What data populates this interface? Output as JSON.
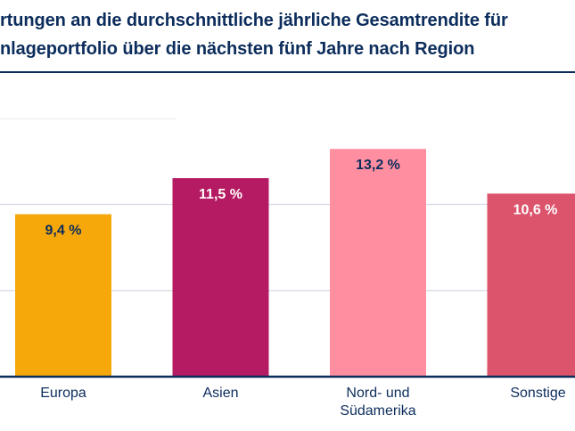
{
  "header": {
    "title_lines": [
      "rtungen an die durchschnittliche jährliche Gesamtrendite für",
      "nlageportfolio über die nächsten fünf Jahre nach Region"
    ]
  },
  "colors": {
    "text": "#0c2d5c",
    "gridline": "#d3dae6",
    "axis": "#0c2d5c"
  },
  "chart_data": {
    "type": "bar",
    "title": "…rtungen an die durchschnittliche jährliche Gesamtrendite für …nlageportfolio über die nächsten fünf Jahre nach Region",
    "categories": [
      "Europa",
      "Asien",
      "Nord- und Südamerika",
      "Sonstige"
    ],
    "category_label_lines": [
      [
        "Europa"
      ],
      [
        "Asien"
      ],
      [
        "Nord- und",
        "Südamerika"
      ],
      [
        "Sonstige"
      ]
    ],
    "values": [
      9.4,
      11.5,
      13.2,
      10.6
    ],
    "data_labels": [
      "9,4 %",
      "11,5 %",
      "13,2 %",
      "10,6 %"
    ],
    "bar_colors": [
      "#f6a80a",
      "#b51b62",
      "#ff8fa0",
      "#dc546c"
    ],
    "label_colors": [
      "#0c2d5c",
      "#ffffff",
      "#0c2d5c",
      "#ffffff"
    ],
    "xlabel": "",
    "ylabel": "",
    "ylim": [
      0,
      15
    ],
    "gridlines": [
      5,
      10,
      15
    ],
    "grid": true,
    "legend": "none",
    "unit": "%"
  }
}
